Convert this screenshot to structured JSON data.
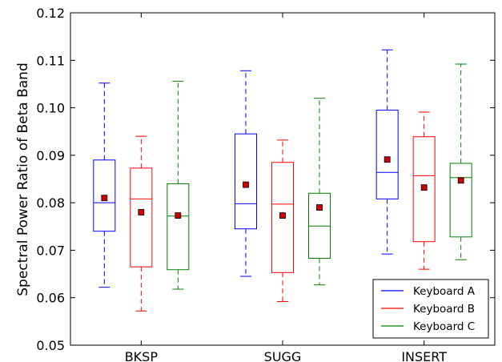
{
  "chart_data": {
    "type": "box",
    "ylabel": "Spectral Power Ratio of Beta Band",
    "xlabel": "",
    "ylim": [
      0.05,
      0.12
    ],
    "yticks": [
      "0.05",
      "0.06",
      "0.07",
      "0.08",
      "0.09",
      "0.10",
      "0.11",
      "0.12"
    ],
    "categories": [
      "BKSP",
      "SUGG",
      "INSERT"
    ],
    "legend_position": "bottom-right",
    "grid": false,
    "series": [
      {
        "name": "Keyboard A",
        "color": "#0000ff",
        "boxes": [
          {
            "whisker_low": 0.0622,
            "q1": 0.074,
            "median": 0.08,
            "q3": 0.089,
            "whisker_high": 0.1052,
            "mean": 0.081
          },
          {
            "whisker_low": 0.0645,
            "q1": 0.0745,
            "median": 0.0798,
            "q3": 0.0945,
            "whisker_high": 0.1078,
            "mean": 0.0838
          },
          {
            "whisker_low": 0.0692,
            "q1": 0.0808,
            "median": 0.0864,
            "q3": 0.0995,
            "whisker_high": 0.1122,
            "mean": 0.0891
          }
        ]
      },
      {
        "name": "Keyboard B",
        "color": "#ff0000",
        "boxes": [
          {
            "whisker_low": 0.0572,
            "q1": 0.0665,
            "median": 0.0808,
            "q3": 0.0873,
            "whisker_high": 0.094,
            "mean": 0.078
          },
          {
            "whisker_low": 0.0592,
            "q1": 0.0653,
            "median": 0.0797,
            "q3": 0.0885,
            "whisker_high": 0.0932,
            "mean": 0.0773
          },
          {
            "whisker_low": 0.066,
            "q1": 0.0718,
            "median": 0.0857,
            "q3": 0.0939,
            "whisker_high": 0.0991,
            "mean": 0.0832
          }
        ]
      },
      {
        "name": "Keyboard C",
        "color": "#008000",
        "boxes": [
          {
            "whisker_low": 0.0618,
            "q1": 0.0659,
            "median": 0.0772,
            "q3": 0.084,
            "whisker_high": 0.1056,
            "mean": 0.0773
          },
          {
            "whisker_low": 0.0627,
            "q1": 0.0683,
            "median": 0.0751,
            "q3": 0.082,
            "whisker_high": 0.102,
            "mean": 0.079
          },
          {
            "whisker_low": 0.068,
            "q1": 0.0728,
            "median": 0.0853,
            "q3": 0.0883,
            "whisker_high": 0.1092,
            "mean": 0.0847
          }
        ]
      }
    ],
    "mean_marker_color": "#cc0000"
  }
}
